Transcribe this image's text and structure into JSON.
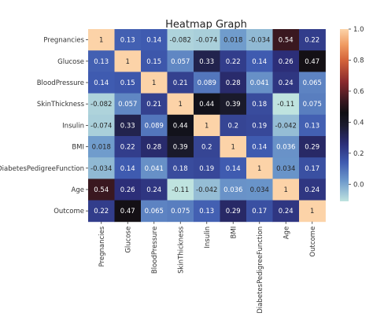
{
  "chart_data": {
    "type": "heatmap",
    "title": "Heatmap Graph",
    "xlabel": "",
    "ylabel": "",
    "rows": [
      "Pregnancies",
      "Glucose",
      "BloodPressure",
      "SkinThickness",
      "Insulin",
      "BMI",
      "DiabetesPedigreeFunction",
      "Age",
      "Outcome"
    ],
    "columns": [
      "Pregnancies",
      "Glucose",
      "BloodPressure",
      "SkinThickness",
      "Insulin",
      "BMI",
      "DiabetesPedigreeFunction",
      "Age",
      "Outcome"
    ],
    "values": [
      [
        1,
        0.13,
        0.14,
        -0.082,
        -0.074,
        0.018,
        -0.034,
        0.54,
        0.22
      ],
      [
        0.13,
        1,
        0.15,
        0.057,
        0.33,
        0.22,
        0.14,
        0.26,
        0.47
      ],
      [
        0.14,
        0.15,
        1,
        0.21,
        0.089,
        0.28,
        0.041,
        0.24,
        0.065
      ],
      [
        -0.082,
        0.057,
        0.21,
        1,
        0.44,
        0.39,
        0.18,
        -0.11,
        0.075
      ],
      [
        -0.074,
        0.33,
        0.089,
        0.44,
        1,
        0.2,
        0.19,
        -0.042,
        0.13
      ],
      [
        0.018,
        0.22,
        0.28,
        0.39,
        0.2,
        1,
        0.14,
        0.036,
        0.29
      ],
      [
        -0.034,
        0.14,
        0.041,
        0.18,
        0.19,
        0.14,
        1,
        0.034,
        0.17
      ],
      [
        0.54,
        0.26,
        0.24,
        -0.11,
        -0.042,
        0.036,
        0.034,
        1,
        0.24
      ],
      [
        0.22,
        0.47,
        0.065,
        0.075,
        0.13,
        0.29,
        0.17,
        0.24,
        1
      ]
    ],
    "value_labels": [
      [
        "1",
        "0.13",
        "0.14",
        "-0.082",
        "-0.074",
        "0.018",
        "-0.034",
        "0.54",
        "0.22"
      ],
      [
        "0.13",
        "1",
        "0.15",
        "0.057",
        "0.33",
        "0.22",
        "0.14",
        "0.26",
        "0.47"
      ],
      [
        "0.14",
        "0.15",
        "1",
        "0.21",
        "0.089",
        "0.28",
        "0.041",
        "0.24",
        "0.065"
      ],
      [
        "-0.082",
        "0.057",
        "0.21",
        "1",
        "0.44",
        "0.39",
        "0.18",
        "-0.11",
        "0.075"
      ],
      [
        "-0.074",
        "0.33",
        "0.089",
        "0.44",
        "1",
        "0.2",
        "0.19",
        "-0.042",
        "0.13"
      ],
      [
        "0.018",
        "0.22",
        "0.28",
        "0.39",
        "0.2",
        "1",
        "0.14",
        "0.036",
        "0.29"
      ],
      [
        "-0.034",
        "0.14",
        "0.041",
        "0.18",
        "0.19",
        "0.14",
        "1",
        "0.034",
        "0.17"
      ],
      [
        "0.54",
        "0.26",
        "0.24",
        "-0.11",
        "-0.042",
        "0.036",
        "0.034",
        "1",
        "0.24"
      ],
      [
        "0.22",
        "0.47",
        "0.065",
        "0.075",
        "0.13",
        "0.29",
        "0.17",
        "0.24",
        "1"
      ]
    ],
    "colorbar": {
      "range": [
        -0.11,
        1.0
      ],
      "ticks": [
        0.0,
        0.2,
        0.4,
        0.6,
        0.8,
        1.0
      ],
      "tick_labels": [
        "0.0",
        "0.2",
        "0.4",
        "0.6",
        "0.8",
        "1.0"
      ],
      "placement": "right",
      "colormap": "icefire",
      "stops": [
        {
          "v": -0.11,
          "color": "#bfe3df"
        },
        {
          "v": 0.02,
          "color": "#6f9bcc"
        },
        {
          "v": 0.14,
          "color": "#3f5bb0"
        },
        {
          "v": 0.26,
          "color": "#2c2e78"
        },
        {
          "v": 0.38,
          "color": "#1b1b2e"
        },
        {
          "v": 0.46,
          "color": "#0f0f14"
        },
        {
          "v": 0.54,
          "color": "#3a1820"
        },
        {
          "v": 0.66,
          "color": "#8a2a2e"
        },
        {
          "v": 0.8,
          "color": "#d4633a"
        },
        {
          "v": 0.9,
          "color": "#f09b62"
        },
        {
          "v": 1.0,
          "color": "#fcd3a8"
        }
      ]
    },
    "grid": false,
    "legend": "colorbar-right"
  }
}
